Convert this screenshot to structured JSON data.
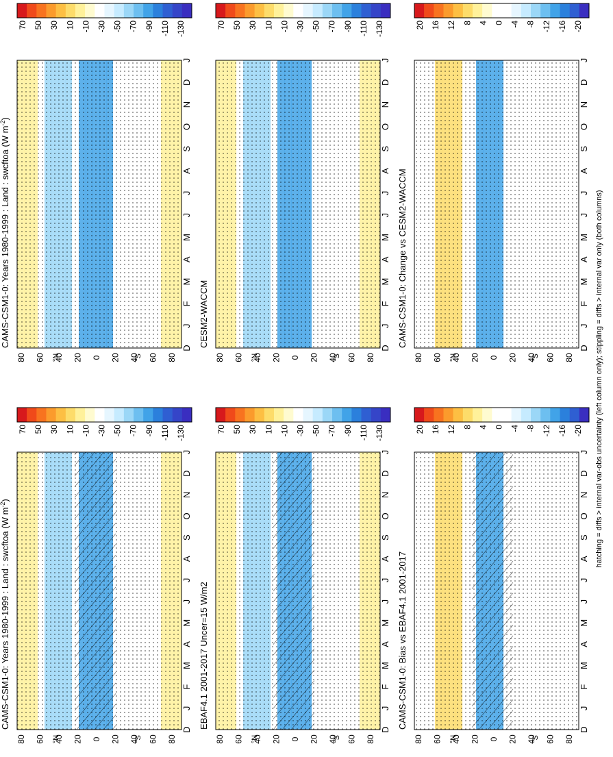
{
  "figure": {
    "footer_note": "hatching = diffs > internal var-obs uncertainty (left column only); stippling = diffs > internal var only (both columns)"
  },
  "chart_data": [
    {
      "id": "left-top",
      "type": "heatmap",
      "title": "CAMS-CSM1-0: Years 1980-1999 : Land : swcftoa (W m",
      "title_sup": "-2",
      "title_end": ")",
      "x_ticks": [
        "D",
        "J",
        "F",
        "M",
        "A",
        "M",
        "J",
        "J",
        "A",
        "S",
        "O",
        "N",
        "D",
        "J"
      ],
      "y_ticks": [
        "80",
        "60",
        "40",
        "20",
        "0",
        "20",
        "40",
        "60",
        "80"
      ],
      "y_hemis": [
        "°N",
        "°S"
      ],
      "colorbar_labels": [
        "70",
        "50",
        "30",
        "10",
        "-10",
        "-30",
        "-50",
        "-70",
        "-90",
        "-110",
        "-130"
      ],
      "colorbar_colors": [
        "#d7191c",
        "#f04a1a",
        "#f8731f",
        "#fb9b2c",
        "#fdbf43",
        "#fddc6a",
        "#fff19a",
        "#fffbd0",
        "#ffffff",
        "#e6f6ff",
        "#c6ebff",
        "#9bd7f7",
        "#6dbff0",
        "#41a3e8",
        "#2b80dc",
        "#2f5fd2",
        "#3545c8",
        "#3a2ec0"
      ],
      "hatching": true,
      "dominant": "cloud forcing shown as positive (yellow) in polar regions and negative (blue) in tropics/mid-latitudes"
    },
    {
      "id": "right-top",
      "type": "heatmap",
      "title": "CAMS-CSM1-0: Years 1980-1999 : Land : swcftoa (W m",
      "title_sup": "-2",
      "title_end": ")",
      "x_ticks": [
        "D",
        "J",
        "F",
        "M",
        "A",
        "M",
        "J",
        "J",
        "A",
        "S",
        "O",
        "N",
        "D",
        "J"
      ],
      "y_ticks": [
        "80",
        "60",
        "40",
        "20",
        "0",
        "20",
        "40",
        "60",
        "80"
      ],
      "y_hemis": [
        "°N",
        "°S"
      ],
      "colorbar_labels": [
        "70",
        "50",
        "30",
        "10",
        "-10",
        "-30",
        "-50",
        "-70",
        "-90",
        "-110",
        "-130"
      ],
      "colorbar_colors": [
        "#d7191c",
        "#f04a1a",
        "#f8731f",
        "#fb9b2c",
        "#fdbf43",
        "#fddc6a",
        "#fff19a",
        "#fffbd0",
        "#ffffff",
        "#e6f6ff",
        "#c6ebff",
        "#9bd7f7",
        "#6dbff0",
        "#41a3e8",
        "#2b80dc",
        "#2f5fd2",
        "#3545c8",
        "#3a2ec0"
      ],
      "hatching": false
    },
    {
      "id": "left-middle",
      "type": "heatmap",
      "title": "EBAF4.1 2001-2017 Uncer=15 W/m2",
      "x_ticks": [
        "D",
        "J",
        "F",
        "M",
        "A",
        "M",
        "J",
        "J",
        "A",
        "S",
        "O",
        "N",
        "D",
        "J"
      ],
      "y_ticks": [
        "80",
        "60",
        "40",
        "20",
        "0",
        "20",
        "40",
        "60",
        "80"
      ],
      "y_hemis": [
        "°N",
        "°S"
      ],
      "colorbar_labels": [
        "70",
        "50",
        "30",
        "10",
        "-10",
        "-30",
        "-50",
        "-70",
        "-90",
        "-110",
        "-130"
      ],
      "colorbar_colors": [
        "#d7191c",
        "#f04a1a",
        "#f8731f",
        "#fb9b2c",
        "#fdbf43",
        "#fddc6a",
        "#fff19a",
        "#fffbd0",
        "#ffffff",
        "#e6f6ff",
        "#c6ebff",
        "#9bd7f7",
        "#6dbff0",
        "#41a3e8",
        "#2b80dc",
        "#2f5fd2",
        "#3545c8",
        "#3a2ec0"
      ],
      "hatching": true
    },
    {
      "id": "right-middle",
      "type": "heatmap",
      "title": "CESM2-WACCM",
      "x_ticks": [
        "D",
        "J",
        "F",
        "M",
        "A",
        "M",
        "J",
        "J",
        "A",
        "S",
        "O",
        "N",
        "D",
        "J"
      ],
      "y_ticks": [
        "80",
        "60",
        "40",
        "20",
        "0",
        "20",
        "40",
        "60",
        "80"
      ],
      "y_hemis": [
        "°N",
        "°S"
      ],
      "colorbar_labels": [
        "70",
        "50",
        "30",
        "10",
        "-10",
        "-30",
        "-50",
        "-70",
        "-90",
        "-110",
        "-130"
      ],
      "colorbar_colors": [
        "#d7191c",
        "#f04a1a",
        "#f8731f",
        "#fb9b2c",
        "#fdbf43",
        "#fddc6a",
        "#fff19a",
        "#fffbd0",
        "#ffffff",
        "#e6f6ff",
        "#c6ebff",
        "#9bd7f7",
        "#6dbff0",
        "#41a3e8",
        "#2b80dc",
        "#2f5fd2",
        "#3545c8",
        "#3a2ec0"
      ],
      "hatching": false
    },
    {
      "id": "left-bottom",
      "type": "heatmap",
      "title": "CAMS-CSM1-0: Bias vs EBAF4.1 2001-2017",
      "x_ticks": [
        "D",
        "J",
        "F",
        "M",
        "A",
        "M",
        "J",
        "J",
        "A",
        "S",
        "O",
        "N",
        "D",
        "J"
      ],
      "y_ticks": [
        "80",
        "60",
        "40",
        "20",
        "0",
        "20",
        "40",
        "60",
        "80"
      ],
      "y_hemis": [
        "°N",
        "°S"
      ],
      "colorbar_labels": [
        "20",
        "16",
        "12",
        "8",
        "4",
        "0",
        "-4",
        "-8",
        "-12",
        "-16",
        "-20"
      ],
      "colorbar_colors": [
        "#d7191c",
        "#f04a1a",
        "#f8731f",
        "#fb9b2c",
        "#fdbf43",
        "#fddc6a",
        "#fff19a",
        "#fffbd0",
        "#ffffff",
        "#ffffff",
        "#e6f6ff",
        "#c6ebff",
        "#9bd7f7",
        "#6dbff0",
        "#41a3e8",
        "#2b80dc",
        "#2f5fd2",
        "#3a2ec0"
      ],
      "hatching": true
    },
    {
      "id": "right-bottom",
      "type": "heatmap",
      "title": "CAMS-CSM1-0: Change vs CESM2-WACCM",
      "x_ticks": [
        "D",
        "J",
        "F",
        "M",
        "A",
        "M",
        "J",
        "J",
        "A",
        "S",
        "O",
        "N",
        "D",
        "J"
      ],
      "y_ticks": [
        "80",
        "60",
        "40",
        "20",
        "0",
        "20",
        "40",
        "60",
        "80"
      ],
      "y_hemis": [
        "°N",
        "°S"
      ],
      "colorbar_labels": [
        "20",
        "16",
        "12",
        "8",
        "4",
        "0",
        "-4",
        "-8",
        "-12",
        "-16",
        "-20"
      ],
      "colorbar_colors": [
        "#d7191c",
        "#f04a1a",
        "#f8731f",
        "#fb9b2c",
        "#fdbf43",
        "#fddc6a",
        "#fff19a",
        "#fffbd0",
        "#ffffff",
        "#ffffff",
        "#e6f6ff",
        "#c6ebff",
        "#9bd7f7",
        "#6dbff0",
        "#41a3e8",
        "#2b80dc",
        "#2f5fd2",
        "#3a2ec0"
      ],
      "hatching": false
    }
  ]
}
